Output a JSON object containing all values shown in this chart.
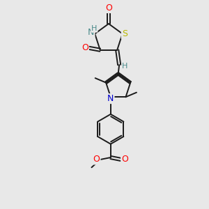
{
  "bg_color": "#e8e8e8",
  "bond_color": "#1a1a1a",
  "bond_width": 1.4,
  "atom_colors": {
    "O": "#ff0000",
    "N_pyrrole": "#0000cc",
    "N_thiazolidine": "#4a8a8a",
    "S": "#b8b800",
    "H": "#4a8a8a",
    "C": "#1a1a1a"
  },
  "fig_bg": "#e8e8e8"
}
